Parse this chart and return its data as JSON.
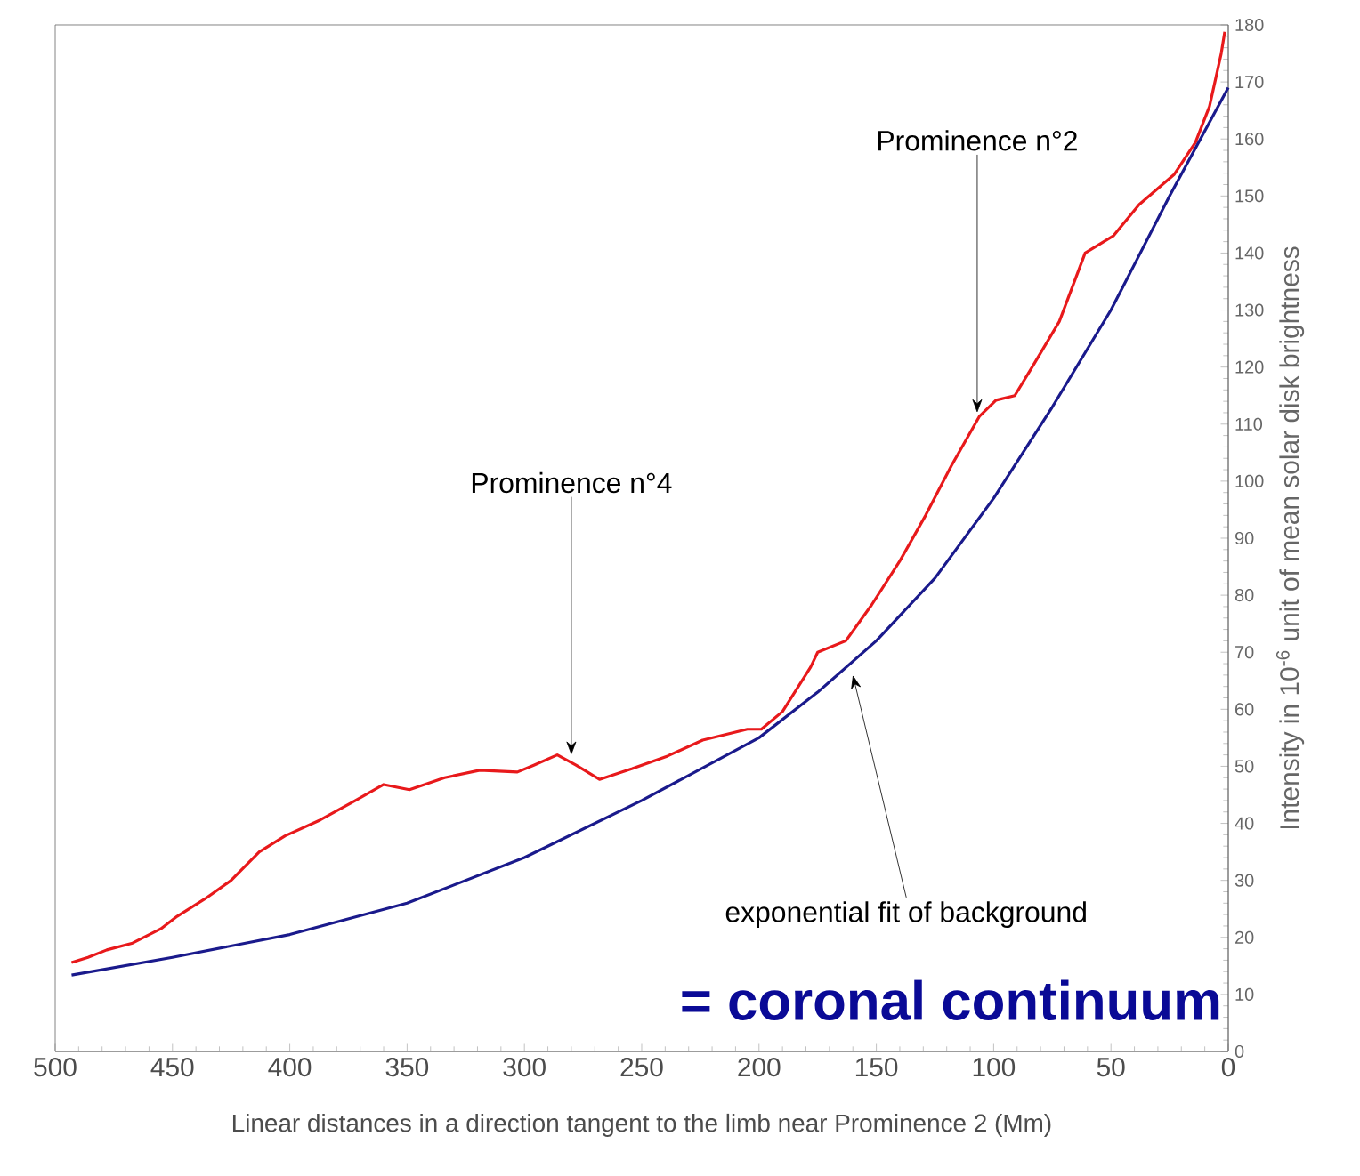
{
  "chart_data": {
    "type": "line",
    "xlabel": "Linear distances in a direction tangent to the limb near Prominence 2 (Mm)",
    "ylabel": "Intensity in 10$^{-6}$ unit of mean solar disk brightness",
    "xlim": [
      500,
      0
    ],
    "ylim": [
      0,
      180
    ],
    "xticks": [
      500,
      450,
      400,
      350,
      300,
      250,
      200,
      150,
      100,
      50,
      0
    ],
    "yticks": [
      0,
      10,
      20,
      30,
      40,
      50,
      60,
      70,
      80,
      90,
      100,
      110,
      120,
      130,
      140,
      150,
      160,
      170,
      180
    ],
    "grid": false,
    "marker": "none",
    "line_style": "solid",
    "series": [
      {
        "color": "#e8191b",
        "x": [
          493,
          486,
          478,
          467,
          455,
          448,
          436,
          425,
          413,
          402,
          387,
          372,
          360,
          349,
          334,
          319,
          303,
          296,
          286,
          278,
          268,
          254,
          239,
          224,
          205,
          199,
          190,
          178,
          175,
          163,
          152,
          140,
          129,
          118,
          106,
          99,
          91,
          83,
          72,
          61,
          49,
          38,
          23,
          14,
          8,
          3,
          1.5
        ],
        "values": [
          15.6,
          16.5,
          17.8,
          19,
          21.5,
          23.7,
          26.8,
          30,
          35,
          37.8,
          40.6,
          44,
          46.8,
          45.9,
          48,
          49.3,
          49,
          50.2,
          52,
          50.2,
          47.7,
          49.6,
          51.8,
          54.6,
          56.5,
          56.5,
          59.6,
          67.4,
          70,
          72,
          78.3,
          86,
          94,
          102.7,
          111.4,
          114.2,
          115,
          120.4,
          128,
          140,
          143,
          148.5,
          153.8,
          159.4,
          165.7,
          175,
          178.8
        ]
      },
      {
        "color": "#1a1a8c",
        "x": [
          493,
          450,
          400,
          350,
          300,
          250,
          200,
          175,
          150,
          125,
          100,
          75,
          50,
          25,
          0
        ],
        "values": [
          13.4,
          16.5,
          20.5,
          26,
          34,
          44,
          55,
          63,
          72,
          83,
          97,
          113,
          130,
          150,
          169
        ]
      }
    ],
    "annotations": [
      {
        "text": "Prominence n°4",
        "x": 280,
        "y": 52
      },
      {
        "text": "Prominence n°2",
        "x": 107,
        "y": 112
      },
      {
        "text": "exponential fit of background",
        "x": 160,
        "y": 66
      },
      "= coronal continuum"
    ]
  }
}
